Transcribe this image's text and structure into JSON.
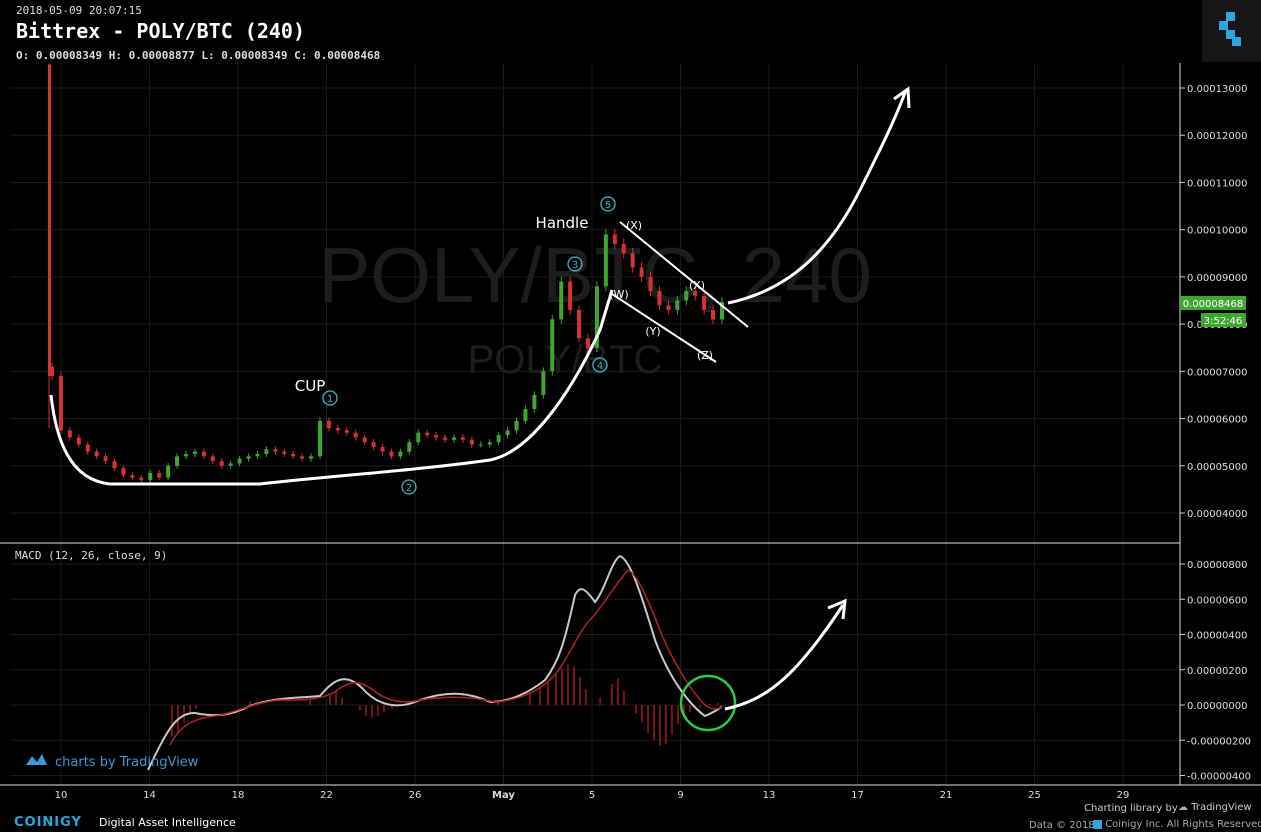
{
  "header": {
    "timestamp": "2018-05-09 20:07:15",
    "title": "Bittrex - POLY/BTC (240)",
    "ohlc": "O: 0.00008349 H: 0.00008877 L: 0.00008349 C: 0.00008468"
  },
  "watermark": {
    "main": "POLY/BTC, 240",
    "sub": "POLY/BTC"
  },
  "price_badge": {
    "price": "0.00008468",
    "countdown": "3:52:46",
    "color": "#3fa630"
  },
  "annotations": {
    "cup": "CUP",
    "handle": "Handle",
    "waves": [
      "1",
      "2",
      "3",
      "4",
      "5"
    ],
    "corrective": [
      "(X)",
      "(W)",
      "(Y)",
      "(X)",
      "(Z)"
    ]
  },
  "macd": {
    "label": "MACD (12, 26, close, 9)"
  },
  "footer": {
    "tradingview_link": "charts by TradingView",
    "charting_library": "Charting library by",
    "tradingview": "TradingView",
    "brand": "COINIGY",
    "brand_tagline": "Digital Asset Intelligence",
    "copyright": "Data © 2018",
    "company": "Coinigy Inc. All Rights Reserved."
  },
  "colors": {
    "up": "#3fa630",
    "down": "#d93030",
    "macd_line": "#c8c8c8",
    "signal_line": "#b22222",
    "hist": "#a01818",
    "highlight_circle": "#2ecc40"
  },
  "chart_data": [
    {
      "type": "candlestick",
      "price_axis": [
        "0.00013000",
        "0.00012000",
        "0.00011000",
        "0.00010000",
        "0.00009000",
        "0.00008000",
        "0.00007000",
        "0.00006000",
        "0.00005000",
        "0.00004000"
      ],
      "date_axis": [
        "10",
        "14",
        "18",
        "22",
        "26",
        "May",
        "5",
        "9",
        "13",
        "17",
        "21",
        "25",
        "29"
      ],
      "ylim": [
        3.65e-05,
        0.000135
      ],
      "closes": [
        6.9e-05,
        5.75e-05,
        5.6e-05,
        5.45e-05,
        5.3e-05,
        5.2e-05,
        5.1e-05,
        4.95e-05,
        4.8e-05,
        4.75e-05,
        4.7e-05,
        4.85e-05,
        4.75e-05,
        5e-05,
        5.2e-05,
        5.25e-05,
        5.3e-05,
        5.2e-05,
        5.1e-05,
        5e-05,
        5.05e-05,
        5.15e-05,
        5.2e-05,
        5.25e-05,
        5.35e-05,
        5.3e-05,
        5.25e-05,
        5.2e-05,
        5.15e-05,
        5.2e-05,
        5.95e-05,
        5.8e-05,
        5.75e-05,
        5.7e-05,
        5.6e-05,
        5.5e-05,
        5.4e-05,
        5.3e-05,
        5.2e-05,
        5.3e-05,
        5.5e-05,
        5.7e-05,
        5.65e-05,
        5.6e-05,
        5.55e-05,
        5.6e-05,
        5.55e-05,
        5.45e-05,
        5.45e-05,
        5.5e-05,
        5.65e-05,
        5.75e-05,
        5.95e-05,
        6.2e-05,
        6.5e-05,
        7e-05,
        8.1e-05,
        8.9e-05,
        8.3e-05,
        7.7e-05,
        7.5e-05,
        8.8e-05,
        9.9e-05,
        9.7e-05,
        9.5e-05,
        9.2e-05,
        9e-05,
        8.7e-05,
        8.4e-05,
        8.3e-05,
        8.5e-05,
        8.7e-05,
        8.6e-05,
        8.3e-05,
        8.1e-05,
        8.468e-05
      ],
      "macd_axis": [
        "0.00000800",
        "0.00000600",
        "0.00000400",
        "0.00000200",
        "0.00000000",
        "-0.00000200",
        "-0.00000400"
      ]
    }
  ]
}
